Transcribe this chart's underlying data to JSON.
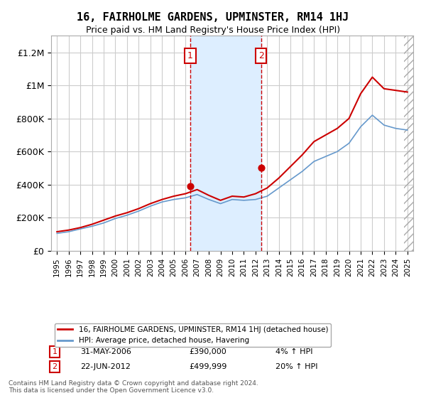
{
  "title": "16, FAIRHOLME GARDENS, UPMINSTER, RM14 1HJ",
  "subtitle": "Price paid vs. HM Land Registry's House Price Index (HPI)",
  "ylabel_ticks": [
    "£0",
    "£200K",
    "£400K",
    "£600K",
    "£800K",
    "£1M",
    "£1.2M"
  ],
  "ytick_values": [
    0,
    200000,
    400000,
    600000,
    800000,
    1000000,
    1200000
  ],
  "ylim": [
    0,
    1300000
  ],
  "xlim_start": 1995.0,
  "xlim_end": 2025.5,
  "event1_x": 2006.42,
  "event1_y": 390000,
  "event1_label": "1",
  "event1_date": "31-MAY-2006",
  "event1_price": "£390,000",
  "event1_hpi": "4% ↑ HPI",
  "event2_x": 2012.47,
  "event2_y": 499999,
  "event2_label": "2",
  "event2_date": "22-JUN-2012",
  "event2_price": "£499,999",
  "event2_hpi": "20% ↑ HPI",
  "line1_color": "#cc0000",
  "line2_color": "#6699cc",
  "shade_color": "#ddeeff",
  "vline_color": "#cc0000",
  "legend1_label": "16, FAIRHOLME GARDENS, UPMINSTER, RM14 1HJ (detached house)",
  "legend2_label": "HPI: Average price, detached house, Havering",
  "footer": "Contains HM Land Registry data © Crown copyright and database right 2024.\nThis data is licensed under the Open Government Licence v3.0.",
  "hpi_years": [
    1995,
    1996,
    1997,
    1998,
    1999,
    2000,
    2001,
    2002,
    2003,
    2004,
    2005,
    2006,
    2007,
    2008,
    2009,
    2010,
    2011,
    2012,
    2013,
    2014,
    2015,
    2016,
    2017,
    2018,
    2019,
    2020,
    2021,
    2022,
    2023,
    2024,
    2025
  ],
  "hpi_values": [
    105000,
    115000,
    132000,
    148000,
    168000,
    195000,
    215000,
    240000,
    270000,
    295000,
    310000,
    320000,
    340000,
    310000,
    285000,
    310000,
    305000,
    310000,
    330000,
    380000,
    430000,
    480000,
    540000,
    570000,
    600000,
    650000,
    750000,
    820000,
    760000,
    740000,
    730000
  ],
  "price_years": [
    1995,
    1996,
    1997,
    1998,
    1999,
    2000,
    2001,
    2002,
    2003,
    2004,
    2005,
    2006,
    2007,
    2008,
    2009,
    2010,
    2011,
    2012,
    2013,
    2014,
    2015,
    2016,
    2017,
    2018,
    2019,
    2020,
    2021,
    2022,
    2023,
    2024,
    2025
  ],
  "price_values": [
    115000,
    125000,
    140000,
    160000,
    185000,
    210000,
    230000,
    255000,
    285000,
    310000,
    330000,
    345000,
    370000,
    335000,
    305000,
    330000,
    325000,
    345000,
    380000,
    440000,
    510000,
    580000,
    660000,
    700000,
    740000,
    800000,
    950000,
    1050000,
    980000,
    970000,
    960000
  ]
}
